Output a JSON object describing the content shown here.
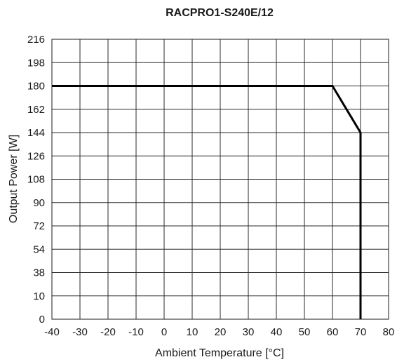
{
  "chart_data": {
    "type": "line",
    "title": "RACPRO1-S240E/12",
    "xlabel": "Ambient Temperature [°C]",
    "ylabel": "Output Power [W]",
    "xlim": [
      -40,
      80
    ],
    "x_ticks": [
      "-40",
      "-30",
      "-20",
      "-10",
      "0",
      "10",
      "20",
      "30",
      "40",
      "50",
      "60",
      "70",
      "80"
    ],
    "y_ticks": [
      "0",
      "10",
      "38",
      "54",
      "72",
      "90",
      "108",
      "126",
      "144",
      "162",
      "180",
      "198",
      "216"
    ],
    "grid": true,
    "series": [
      {
        "x": [
          -40,
          60,
          70,
          70
        ],
        "y": [
          180,
          180,
          144,
          0
        ],
        "color": "#000000"
      }
    ]
  }
}
